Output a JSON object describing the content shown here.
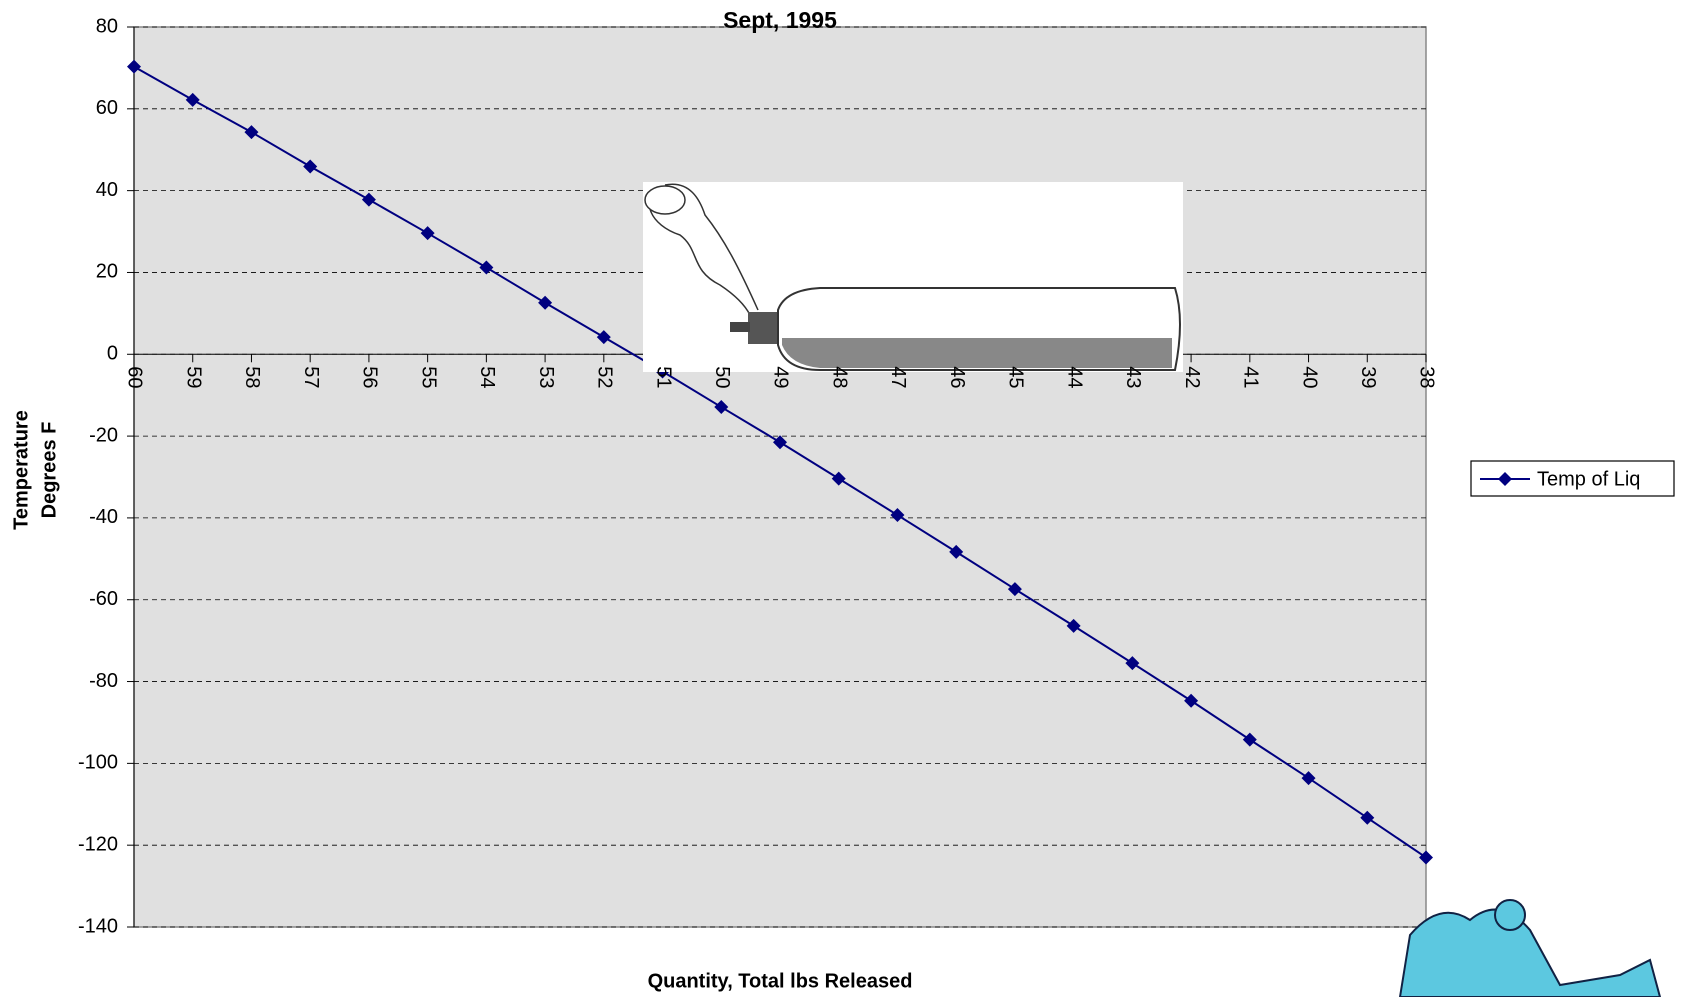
{
  "chart_data": {
    "type": "line",
    "title": "Sept, 1995",
    "x_label": "Quantity, Total lbs Released",
    "y_label": [
      "Temperature",
      "Degrees F"
    ],
    "categories": [
      60,
      59,
      58,
      57,
      56,
      55,
      54,
      53,
      52,
      51,
      50,
      49,
      48,
      47,
      46,
      45,
      44,
      43,
      42,
      41,
      40,
      39,
      38
    ],
    "series": [
      {
        "name": "Temp of Liq",
        "color": "#000080",
        "values": [
          70.3,
          62.2,
          54.3,
          45.9,
          37.8,
          29.6,
          21.2,
          12.6,
          4.2,
          -4.2,
          -12.9,
          -21.5,
          -30.4,
          -39.3,
          -48.3,
          -57.4,
          -66.4,
          -75.5,
          -84.7,
          -94.2,
          -103.6,
          -113.3,
          -123.0
        ]
      }
    ],
    "ylim": [
      -140,
      80
    ],
    "yticks": [
      -140,
      -120,
      -100,
      -80,
      -60,
      -40,
      -20,
      0,
      20,
      40,
      60,
      80
    ],
    "grid": true,
    "legend": "right"
  }
}
